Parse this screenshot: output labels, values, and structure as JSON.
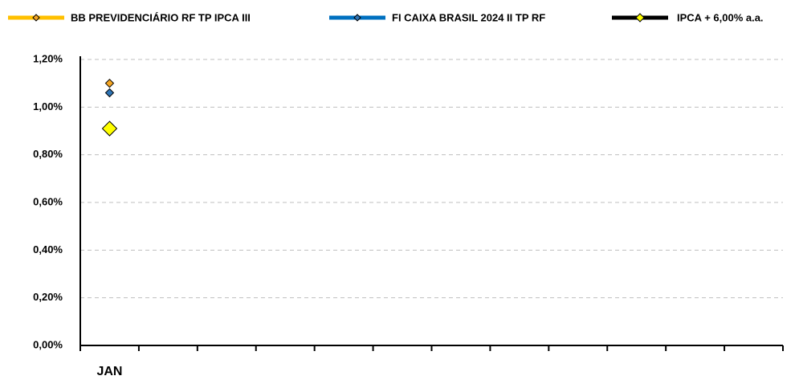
{
  "chart_data": {
    "type": "line",
    "categories": [
      "JAN",
      null,
      null,
      null,
      null,
      null,
      null,
      null,
      null,
      null,
      null,
      null
    ],
    "series": [
      {
        "name": "BB PREVIDENCIÁRIO RF TP IPCA III",
        "color": "#FFC000",
        "marker_color": "#F5A623",
        "values": [
          1.1,
          null,
          null,
          null,
          null,
          null,
          null,
          null,
          null,
          null,
          null,
          null
        ]
      },
      {
        "name": "FI CAIXA BRASIL 2024 II TP RF",
        "color": "#0070C0",
        "marker_color": "#2E75B6",
        "values": [
          1.06,
          null,
          null,
          null,
          null,
          null,
          null,
          null,
          null,
          null,
          null,
          null
        ]
      },
      {
        "name": "IPCA + 6,00% a.a.",
        "color": "#000000",
        "marker_color": "#FFFF00",
        "values": [
          0.91,
          null,
          null,
          null,
          null,
          null,
          null,
          null,
          null,
          null,
          null,
          null
        ]
      }
    ],
    "ylim": [
      0,
      1.2
    ],
    "yticks": [
      {
        "value": 0,
        "label": "0,00%"
      },
      {
        "value": 0.2,
        "label": "0,20%"
      },
      {
        "value": 0.4,
        "label": "0,40%"
      },
      {
        "value": 0.6,
        "label": "0,60%"
      },
      {
        "value": 0.8,
        "label": "0,80%"
      },
      {
        "value": 1.0,
        "label": "1,00%"
      },
      {
        "value": 1.2,
        "label": "1,20%"
      }
    ],
    "grid": true,
    "legend": "top"
  }
}
